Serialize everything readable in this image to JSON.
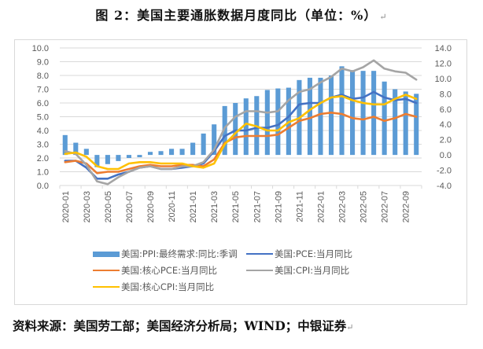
{
  "title": "图 2：美国主要通胀数据月度同比（单位：%）",
  "source": "资料来源：美国劳工部；美国经济分析局；WIND；中银证券",
  "paragraph_mark": "↵",
  "chart_data": {
    "type": "bar+line",
    "title": "美国主要通胀数据月度同比（单位：%）",
    "xlabel": "",
    "ylabel_left": "",
    "ylabel_right": "",
    "ylim_left": [
      0,
      10
    ],
    "ylim_right": [
      -4,
      14
    ],
    "yticks_left": [
      "10.0",
      "9.0",
      "8.0",
      "7.0",
      "6.0",
      "5.0",
      "4.0",
      "3.0",
      "2.0",
      "1.0",
      "0.0"
    ],
    "yticks_right": [
      "14.0",
      "12.0",
      "10.0",
      "8.0",
      "6.0",
      "4.0",
      "2.0",
      "0.0",
      "-2.0",
      "-4.0"
    ],
    "grid": true,
    "legend_position": "bottom",
    "categories": [
      "2020-01",
      "2020-02",
      "2020-03",
      "2020-04",
      "2020-05",
      "2020-06",
      "2020-07",
      "2020-08",
      "2020-09",
      "2020-10",
      "2020-11",
      "2020-12",
      "2021-01",
      "2021-02",
      "2021-03",
      "2021-04",
      "2021-05",
      "2021-06",
      "2021-07",
      "2021-08",
      "2021-09",
      "2021-10",
      "2021-11",
      "2021-12",
      "2022-01",
      "2022-02",
      "2022-03",
      "2022-04",
      "2022-05",
      "2022-06",
      "2022-07",
      "2022-08",
      "2022-09",
      "2022-10"
    ],
    "tick_labels": [
      "2020-01",
      "2020-03",
      "2020-05",
      "2020-07",
      "2020-09",
      "2020-11",
      "2021-01",
      "2021-03",
      "2021-05",
      "2021-07",
      "2021-09",
      "2021-11",
      "2022-01",
      "2022-03",
      "2022-05",
      "2022-07",
      "2022-09"
    ],
    "series": [
      {
        "name": "美国:PPI:最终需求:同比:季调",
        "type": "bar",
        "axis": "right",
        "color": "#5B9BD5",
        "values": [
          2.6,
          1.6,
          0.8,
          -1.6,
          -1.2,
          -0.8,
          -0.4,
          -0.3,
          0.4,
          0.5,
          0.8,
          0.8,
          1.6,
          2.8,
          4.0,
          6.4,
          6.8,
          7.4,
          7.7,
          8.5,
          8.7,
          8.8,
          9.8,
          10.1,
          10.1,
          10.4,
          11.6,
          11.1,
          11.0,
          11.0,
          9.6,
          8.6,
          8.3,
          8.0
        ]
      },
      {
        "name": "美国:PCE:当月同比",
        "type": "line",
        "axis": "left",
        "color": "#4472C4",
        "values": [
          1.8,
          1.8,
          1.3,
          0.5,
          0.5,
          0.8,
          1.0,
          1.3,
          1.4,
          1.2,
          1.2,
          1.3,
          1.4,
          1.6,
          2.5,
          3.6,
          4.0,
          4.0,
          4.2,
          4.2,
          4.4,
          5.0,
          5.9,
          6.0,
          6.0,
          6.4,
          6.6,
          6.3,
          6.4,
          6.8,
          6.4,
          6.2,
          6.3,
          6.0
        ]
      },
      {
        "name": "美国:核心PCE:当月同比",
        "type": "line",
        "axis": "left",
        "color": "#ED7D31",
        "values": [
          1.7,
          1.8,
          1.6,
          0.9,
          1.0,
          1.0,
          1.2,
          1.4,
          1.5,
          1.4,
          1.4,
          1.5,
          1.5,
          1.4,
          1.9,
          3.1,
          3.5,
          3.6,
          3.6,
          3.6,
          3.7,
          4.2,
          4.7,
          4.9,
          5.2,
          5.3,
          5.2,
          4.9,
          4.8,
          5.0,
          4.7,
          4.9,
          5.2,
          5.0
        ]
      },
      {
        "name": "美国:CPI:当月同比",
        "type": "line",
        "axis": "left",
        "color": "#A5A5A5",
        "values": [
          2.5,
          2.3,
          1.5,
          0.3,
          0.1,
          0.6,
          1.0,
          1.3,
          1.4,
          1.2,
          1.2,
          1.4,
          1.4,
          1.7,
          2.6,
          4.2,
          5.0,
          5.4,
          5.4,
          5.3,
          5.4,
          6.2,
          6.8,
          7.0,
          7.5,
          7.9,
          8.5,
          8.3,
          8.6,
          9.1,
          8.5,
          8.3,
          8.2,
          7.7
        ]
      },
      {
        "name": "美国:核心CPI:当月同比",
        "type": "line",
        "axis": "left",
        "color": "#FFC000",
        "values": [
          2.3,
          2.4,
          2.1,
          1.4,
          1.2,
          1.2,
          1.6,
          1.7,
          1.7,
          1.6,
          1.6,
          1.6,
          1.4,
          1.3,
          1.6,
          3.0,
          3.8,
          4.5,
          4.3,
          4.0,
          4.0,
          4.6,
          4.9,
          5.5,
          6.0,
          6.4,
          6.5,
          6.2,
          6.0,
          5.9,
          5.9,
          6.3,
          6.6,
          6.3
        ]
      }
    ]
  },
  "legend": [
    {
      "label": "美国:PPI:最终需求:同比:季调",
      "color": "#5B9BD5",
      "kind": "bar"
    },
    {
      "label": "美国:PCE:当月同比",
      "color": "#4472C4",
      "kind": "line"
    },
    {
      "label": "美国:核心PCE:当月同比",
      "color": "#ED7D31",
      "kind": "line"
    },
    {
      "label": "美国:CPI:当月同比",
      "color": "#A5A5A5",
      "kind": "line"
    },
    {
      "label": "美国:核心CPI:当月同比",
      "color": "#FFC000",
      "kind": "line"
    }
  ]
}
